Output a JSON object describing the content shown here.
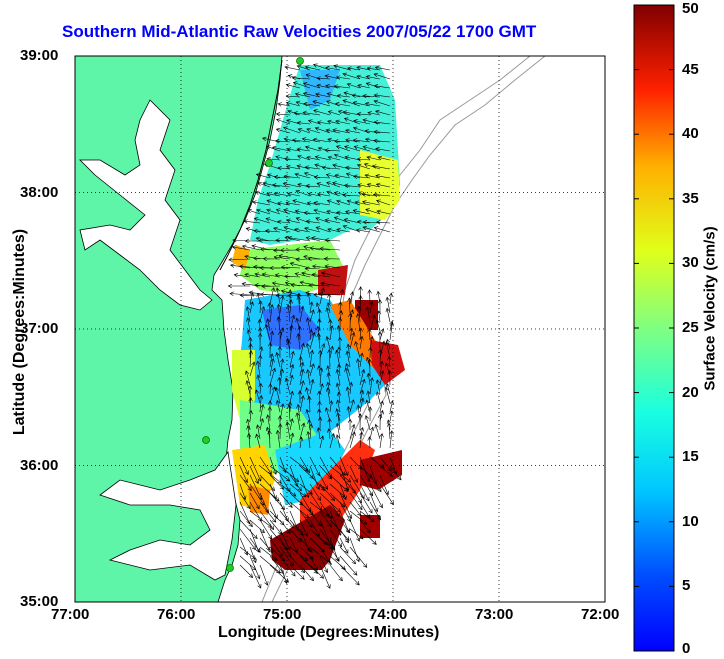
{
  "title": "Southern Mid-Atlantic Raw Velocities 2007/05/22 1700 GMT",
  "xlabel": "Longitude (Degrees:Minutes)",
  "ylabel": "Latitude (Degrees:Minutes)",
  "colorbar": {
    "label": "Surface Velocity (cm/s)",
    "min": 0,
    "max": 50,
    "ticks": [
      "0",
      "5",
      "10",
      "15",
      "20",
      "25",
      "30",
      "35",
      "40",
      "45",
      "50"
    ],
    "colormap": "jet"
  },
  "map": {
    "x_ticks": [
      "77:00",
      "76:00",
      "75:00",
      "74:00",
      "73:00",
      "72:00"
    ],
    "y_ticks": [
      "39:00",
      "38:00",
      "37:00",
      "36:00",
      "35:00"
    ],
    "xlim": [
      -77,
      -72
    ],
    "ylim": [
      35,
      39
    ],
    "grid": "dotted",
    "land_color": "#5ff5a8",
    "coast_color": "#000000",
    "contour_color": "#999999",
    "site_marker_color": "#22cc22"
  }
}
